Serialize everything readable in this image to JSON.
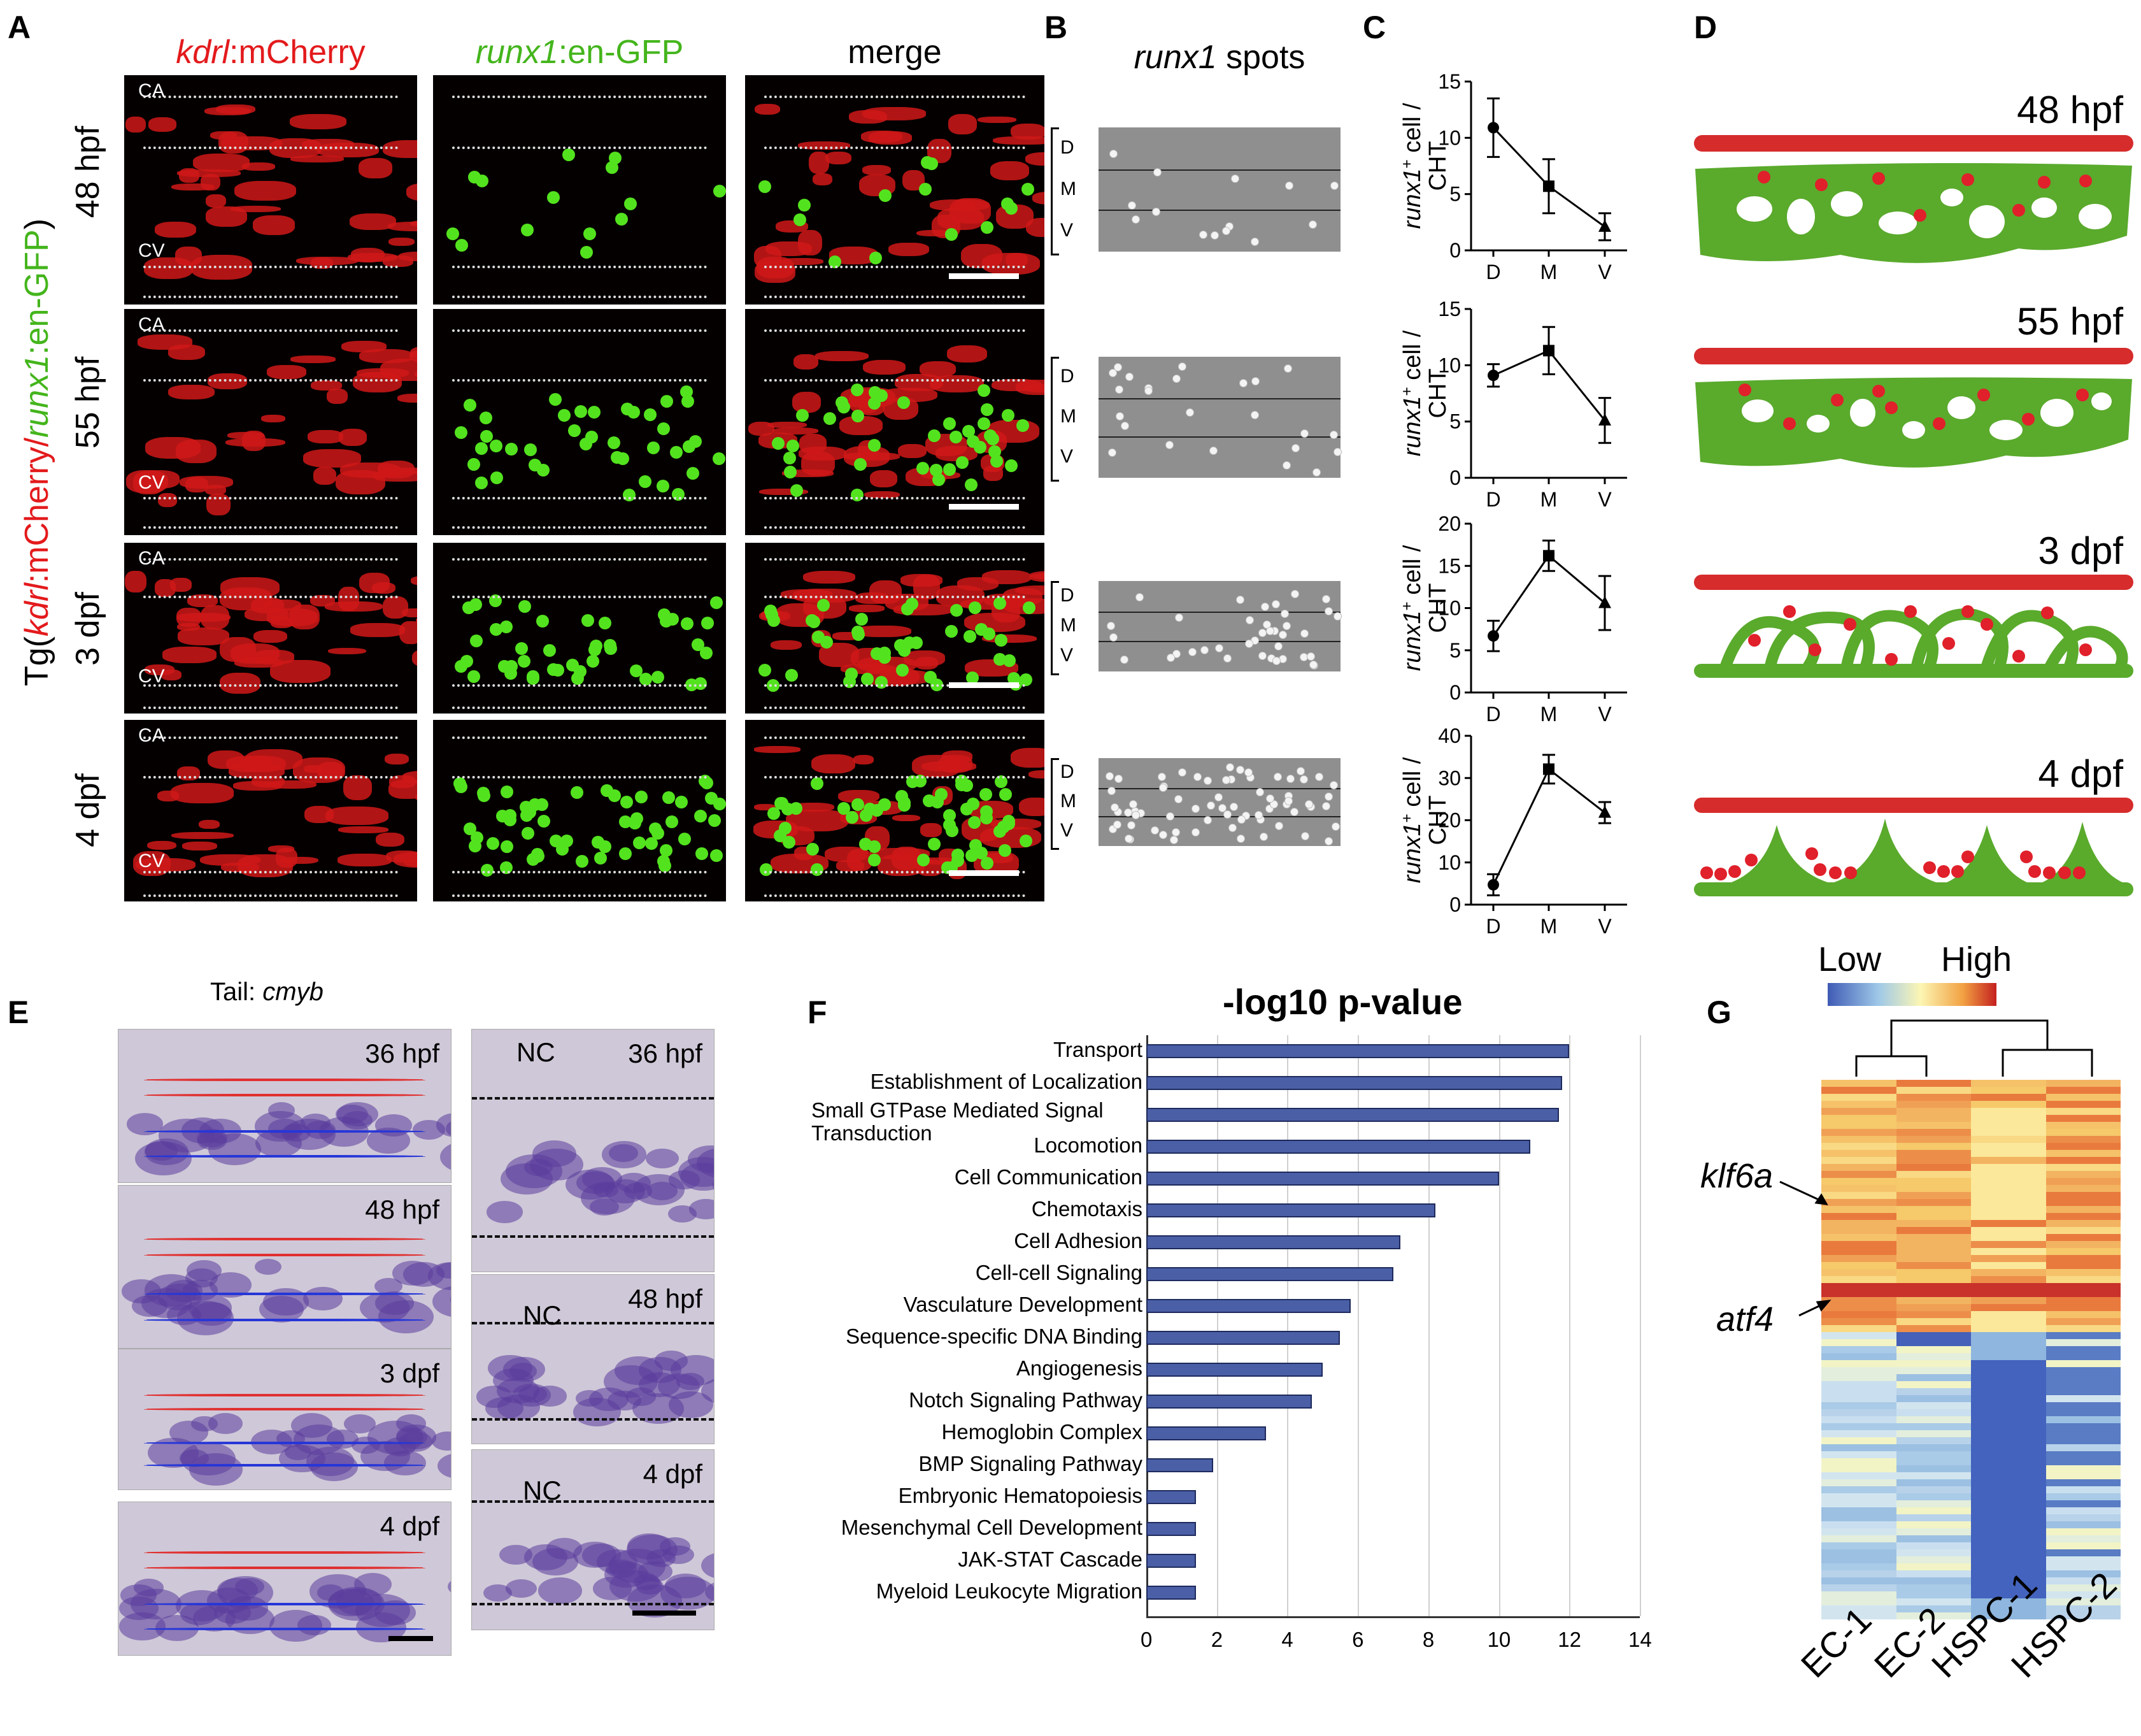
{
  "panels": {
    "A": "A",
    "B": "B",
    "C": "C",
    "D": "D",
    "E": "E",
    "F": "F",
    "G": "G"
  },
  "panelA": {
    "col_headers": {
      "kdrl_gene": "kdrl",
      "kdrl_rest": ":mCherry",
      "runx_gene": "runx1",
      "runx_rest": ":en-GFP",
      "merge": "merge"
    },
    "side_label": {
      "pre": "Tg(",
      "g1": "kdrl",
      "r1": ":mCherry/",
      "g2": "runx1",
      "r2": ":en-GFP",
      "post": ")"
    },
    "rows": [
      "48 hpf",
      "55 hpf",
      "3 dpf",
      "4 dpf"
    ],
    "vessel_labels": {
      "ca": "CA",
      "cv": "CV"
    }
  },
  "panelB": {
    "title_gene": "runx1",
    "title_rest": " spots",
    "zones": [
      "D",
      "M",
      "V"
    ]
  },
  "panelC": {
    "ylabel_gene": "runx1",
    "ylabel_sup": "+",
    "ylabel_rest": "cell /",
    "ylabel_line2": "CHT",
    "colors": {
      "line": "#000000"
    }
  },
  "panelD": {
    "stages": [
      "48 hpf",
      "55 hpf",
      "3 dpf",
      "4 dpf"
    ],
    "colors": {
      "artery": "#d62c2c",
      "vein_plexus": "#5aaa2c",
      "cells": "#e0202a"
    }
  },
  "panelE": {
    "title_pre": "Tail: ",
    "title_gene": "cmyb",
    "left_stages": [
      "36 hpf",
      "48 hpf",
      "3 dpf",
      "4 dpf"
    ],
    "right_stages": [
      "36 hpf",
      "48 hpf",
      "4 dpf"
    ],
    "nc": "NC"
  },
  "panelF": {
    "title": "-log10  p-value",
    "bar_color": "#4a5fa6"
  },
  "panelG": {
    "legend_low": "Low",
    "legend_high": "High",
    "genes": [
      "klf6a",
      "atf4"
    ],
    "samples": [
      "EC-1",
      "EC-2",
      "HSPC-1",
      "HSPC-2"
    ]
  },
  "chart_data": [
    {
      "type": "line",
      "title": "",
      "categories": [
        "D",
        "M",
        "V"
      ],
      "ylim": [
        0,
        15
      ],
      "yticks": [
        0,
        5,
        10,
        15
      ],
      "series": [
        {
          "name": "48 hpf",
          "values": [
            10.9,
            5.7,
            2.1
          ],
          "err": [
            2.6,
            2.4,
            1.2
          ]
        }
      ],
      "ylabel": "runx1+ cell / CHT"
    },
    {
      "type": "line",
      "title": "",
      "categories": [
        "D",
        "M",
        "V"
      ],
      "ylim": [
        0,
        15
      ],
      "yticks": [
        0,
        5,
        10,
        15
      ],
      "series": [
        {
          "name": "55 hpf",
          "values": [
            9.1,
            11.3,
            5.1
          ],
          "err": [
            1.0,
            2.1,
            2.0
          ]
        }
      ],
      "ylabel": "runx1+ cell / CHT"
    },
    {
      "type": "line",
      "title": "",
      "categories": [
        "D",
        "M",
        "V"
      ],
      "ylim": [
        0,
        20
      ],
      "yticks": [
        0,
        5,
        10,
        15,
        20
      ],
      "series": [
        {
          "name": "3 dpf",
          "values": [
            6.7,
            16.2,
            10.6
          ],
          "err": [
            1.8,
            1.8,
            3.2
          ]
        }
      ],
      "ylabel": "runx1+ cell / CHT"
    },
    {
      "type": "line",
      "title": "",
      "categories": [
        "D",
        "M",
        "V"
      ],
      "ylim": [
        0,
        40
      ],
      "yticks": [
        0,
        10,
        20,
        30,
        40
      ],
      "series": [
        {
          "name": "4 dpf",
          "values": [
            4.7,
            32.1,
            21.8
          ],
          "err": [
            2.5,
            3.4,
            2.5
          ]
        }
      ],
      "ylabel": "runx1+ cell / CHT"
    },
    {
      "type": "bar",
      "orientation": "horizontal",
      "title": "-log10  p-value",
      "categories": [
        "Transport",
        "Establishment of Localization",
        "Small GTPase Mediated Signal Transduction",
        "Locomotion",
        "Cell Communication",
        "Chemotaxis",
        "Cell Adhesion",
        "Cell-cell Signaling",
        "Vasculature Development",
        "Sequence-specific DNA Binding",
        "Angiogenesis",
        "Notch Signaling Pathway",
        "Hemoglobin Complex",
        "BMP Signaling Pathway",
        "Embryonic Hematopoiesis",
        "Mesenchymal Cell Development",
        "JAK-STAT Cascade",
        "Myeloid Leukocyte Migration"
      ],
      "values": [
        12.0,
        11.8,
        11.7,
        10.9,
        10.0,
        8.2,
        7.2,
        7.0,
        5.8,
        5.5,
        5.0,
        4.7,
        3.4,
        1.9,
        1.4,
        1.4,
        1.4,
        1.4
      ],
      "xlim": [
        0,
        14
      ],
      "xticks": [
        0,
        2,
        4,
        6,
        8,
        10,
        12,
        14
      ]
    }
  ]
}
